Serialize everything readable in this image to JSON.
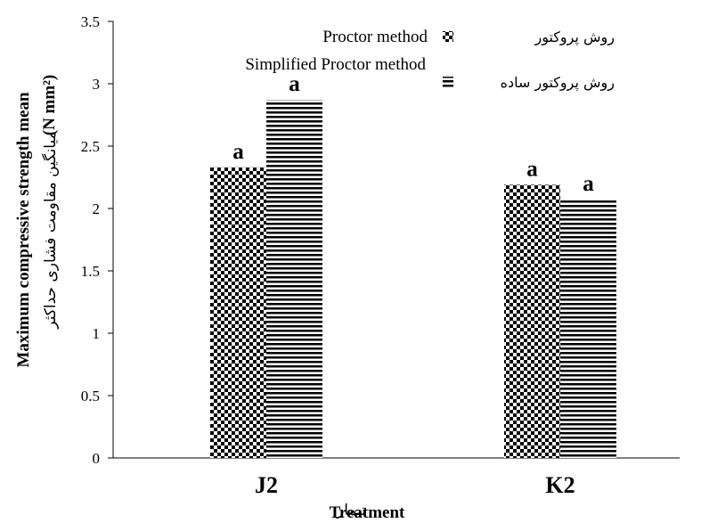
{
  "chart_data": {
    "type": "bar",
    "categories": [
      "J2",
      "K2"
    ],
    "series": [
      {
        "name": "Proctor method",
        "name_fa": "روش پروکتور",
        "pattern": "checkerboard",
        "values": [
          2.33,
          2.19
        ],
        "labels": [
          "a",
          "a"
        ]
      },
      {
        "name": "Simplified Proctor method",
        "name_fa": "روش پروکتور ساده",
        "pattern": "horizontal-stripes",
        "values": [
          2.87,
          2.07
        ],
        "labels": [
          "a",
          "a"
        ]
      }
    ],
    "yticks": [
      "0",
      "0.5",
      "1",
      "1.5",
      "2",
      "2.5",
      "3",
      "3.5"
    ],
    "ylim": [
      0,
      3.5
    ],
    "ylabel": "Maximum compressive strength mean",
    "ylabel_unit": "(N mm²)",
    "ylabel_fa": "میانگین مقاومت فشاری حداکثر",
    "xlabel": "Treatment",
    "xlabel_fa": "تیمار",
    "legend_position": "top-right",
    "grid": false
  }
}
